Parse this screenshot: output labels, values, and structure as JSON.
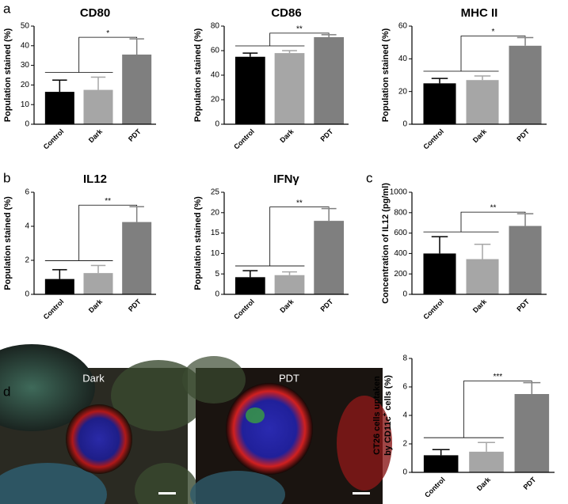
{
  "panel_labels": [
    "a",
    "b",
    "c",
    "d"
  ],
  "images": [
    {
      "label": "Dark"
    },
    {
      "label": "PDT"
    }
  ],
  "chart_data": [
    {
      "type": "bar",
      "title": "CD80",
      "ylabel": "Population stained (%)",
      "categories": [
        "Control",
        "Dark",
        "PDT"
      ],
      "values": [
        16.5,
        17.5,
        35.5
      ],
      "errors": [
        6,
        6.5,
        8
      ],
      "colors": [
        "#000000",
        "#a6a6a6",
        "#7f7f7f"
      ],
      "ylim": [
        0,
        50
      ],
      "yticks": [
        0,
        10,
        20,
        30,
        40,
        50
      ],
      "annotation": "*"
    },
    {
      "type": "bar",
      "title": "CD86",
      "ylabel": "Population stained (%)",
      "categories": [
        "Control",
        "Dark",
        "PDT"
      ],
      "values": [
        55,
        58,
        71
      ],
      "errors": [
        3,
        2,
        2
      ],
      "colors": [
        "#000000",
        "#a6a6a6",
        "#7f7f7f"
      ],
      "ylim": [
        0,
        80
      ],
      "yticks": [
        0,
        20,
        40,
        60,
        80
      ],
      "annotation": "**"
    },
    {
      "type": "bar",
      "title": "MHC II",
      "ylabel": "Population stained (%)",
      "categories": [
        "Control",
        "Dark",
        "PDT"
      ],
      "values": [
        25,
        27,
        48
      ],
      "errors": [
        3,
        2.5,
        5
      ],
      "colors": [
        "#000000",
        "#a6a6a6",
        "#7f7f7f"
      ],
      "ylim": [
        0,
        60
      ],
      "yticks": [
        0,
        20,
        40,
        60
      ],
      "annotation": "*"
    },
    {
      "type": "bar",
      "title": "IL12",
      "ylabel": "Population stained (%)",
      "categories": [
        "Control",
        "Dark",
        "PDT"
      ],
      "values": [
        0.9,
        1.25,
        4.25
      ],
      "errors": [
        0.55,
        0.45,
        0.9
      ],
      "colors": [
        "#000000",
        "#a6a6a6",
        "#7f7f7f"
      ],
      "ylim": [
        0,
        6
      ],
      "yticks": [
        0,
        2,
        4,
        6
      ],
      "annotation": "**"
    },
    {
      "type": "bar",
      "title": "IFNγ",
      "ylabel": "Population stained (%)",
      "categories": [
        "Control",
        "Dark",
        "PDT"
      ],
      "values": [
        4.2,
        4.7,
        18
      ],
      "errors": [
        1.6,
        0.8,
        3
      ],
      "colors": [
        "#000000",
        "#a6a6a6",
        "#7f7f7f"
      ],
      "ylim": [
        0,
        25
      ],
      "yticks": [
        0,
        5,
        10,
        15,
        20,
        25
      ],
      "annotation": "**"
    },
    {
      "type": "bar",
      "ylabel": "Concentration of IL12 (pg/ml)",
      "categories": [
        "Control",
        "Dark",
        "PDT"
      ],
      "values": [
        400,
        345,
        670
      ],
      "errors": [
        165,
        145,
        120
      ],
      "colors": [
        "#000000",
        "#a6a6a6",
        "#7f7f7f"
      ],
      "ylim": [
        0,
        1000
      ],
      "yticks": [
        0,
        200,
        400,
        600,
        800,
        1000
      ],
      "annotation": "**"
    },
    {
      "type": "bar",
      "ylabel": "CT26 cells uptaken",
      "ylabel2": "by CD11c",
      "ylabel_sup": "+",
      "ylabel_tail": "cells (%)",
      "categories": [
        "Control",
        "Dark",
        "PDT"
      ],
      "values": [
        1.2,
        1.45,
        5.5
      ],
      "errors": [
        0.4,
        0.65,
        0.8
      ],
      "colors": [
        "#000000",
        "#a6a6a6",
        "#7f7f7f"
      ],
      "ylim": [
        0,
        8
      ],
      "yticks": [
        0,
        2,
        4,
        6,
        8
      ],
      "annotation": "***"
    }
  ]
}
